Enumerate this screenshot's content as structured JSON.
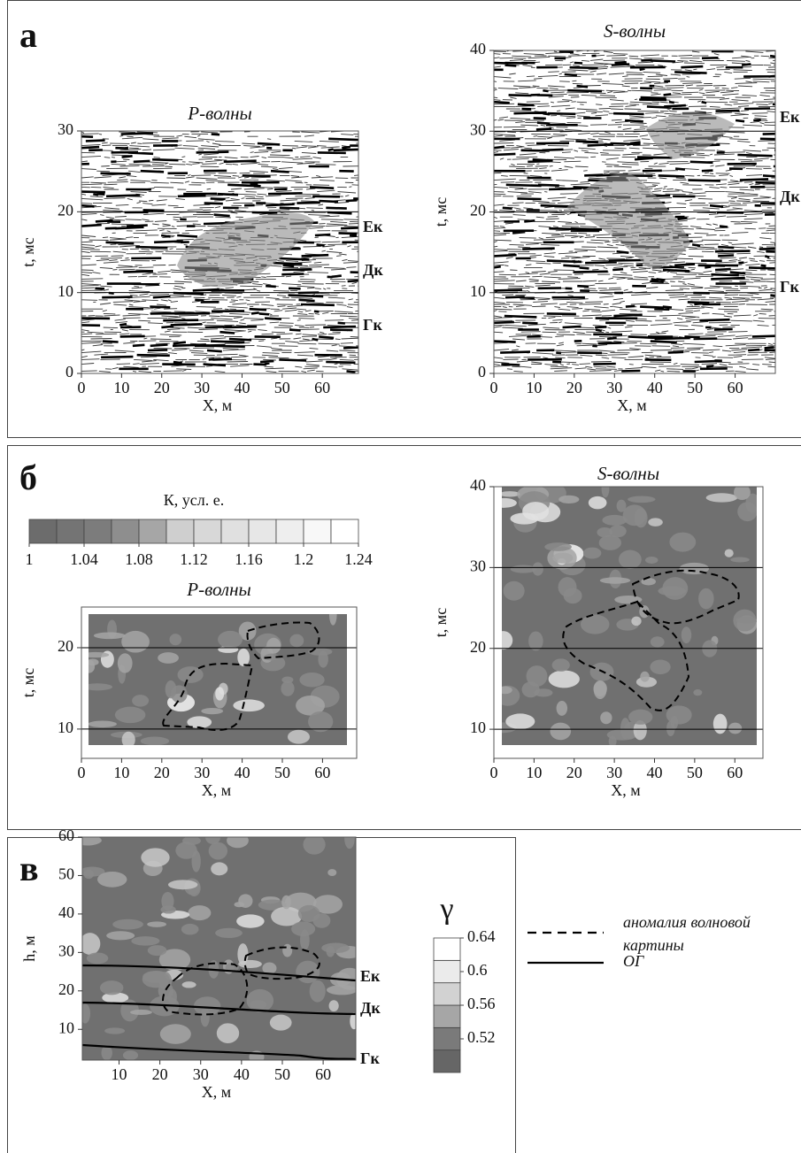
{
  "panels": [
    {
      "label": "а",
      "plots": [
        {
          "title": "P-волны",
          "xlabel": "X, м",
          "ylabel": "t, мс",
          "xlim": [
            0,
            69
          ],
          "ylim": [
            0,
            30
          ],
          "xticks": [
            0,
            10,
            20,
            30,
            40,
            50,
            60
          ],
          "yticks": [
            0,
            10,
            20,
            30
          ],
          "hlines": [
            10,
            20,
            30
          ],
          "horizons": [
            "Ек",
            "Дк",
            "Гк"
          ]
        },
        {
          "title": "S-волны",
          "xlabel": "X, м",
          "ylabel": "t, мс",
          "xlim": [
            0,
            70
          ],
          "ylim": [
            0,
            40
          ],
          "xticks": [
            0,
            10,
            20,
            30,
            40,
            50,
            60
          ],
          "yticks": [
            0,
            10,
            20,
            30,
            40
          ],
          "hlines": [
            10,
            20,
            30
          ],
          "horizons": [
            "Ек",
            "Дк",
            "Гк"
          ]
        }
      ]
    },
    {
      "label": "б",
      "colorbar": {
        "title": "К, усл. е.",
        "lim": [
          1,
          1.24
        ],
        "ticks": [
          1,
          1.04,
          1.08,
          1.12,
          1.16,
          1.2,
          1.24
        ],
        "colors": [
          "#6c6c6c",
          "#747474",
          "#7c7c7c",
          "#8e8e8e",
          "#a6a6a6",
          "#cfcfcf",
          "#d8d8d8",
          "#e0e0e0",
          "#e7e7e7",
          "#eeeeee",
          "#f8f8f8",
          "#ffffff"
        ]
      },
      "plots": [
        {
          "title": "P-волны",
          "xlabel": "X, м",
          "ylabel": "t, мс",
          "xlim": [
            0,
            68.5
          ],
          "ylim": [
            6.4,
            25
          ],
          "xticks": [
            0,
            10,
            20,
            30,
            40,
            50,
            60
          ],
          "yticks": [
            10,
            20
          ],
          "hlines": [
            10,
            20
          ]
        },
        {
          "title": "S-волны",
          "xlabel": "X, м",
          "ylabel": "t, мс",
          "xlim": [
            0,
            67
          ],
          "ylim": [
            6.4,
            40
          ],
          "xticks": [
            0,
            10,
            20,
            30,
            40,
            50,
            60
          ],
          "yticks": [
            10,
            20,
            30,
            40
          ],
          "hlines": [
            10,
            20,
            30
          ]
        }
      ]
    },
    {
      "label": "в",
      "plots": [
        {
          "xlabel": "X, м",
          "ylabel": "h, м",
          "xlim": [
            1,
            68
          ],
          "ylim": [
            2,
            60
          ],
          "xticks": [
            10,
            20,
            30,
            40,
            50,
            60
          ],
          "yticks": [
            10,
            20,
            30,
            40,
            50,
            60
          ],
          "horizons": [
            "Ек",
            "Дк",
            "Гк"
          ]
        }
      ],
      "colorbar": {
        "title": "γ",
        "lim": [
          0.48,
          0.64
        ],
        "ticks": [
          0.52,
          0.56,
          0.6,
          0.64
        ],
        "colors": [
          "#666666",
          "#7a7a7a",
          "#a6a6a6",
          "#d2d2d2",
          "#ebebeb",
          "#ffffff"
        ]
      },
      "legend": [
        {
          "label": [
            "аномалия волновой",
            "картины"
          ],
          "style": "dashed"
        },
        {
          "label": [
            "ОГ"
          ],
          "style": "solid"
        }
      ]
    }
  ]
}
